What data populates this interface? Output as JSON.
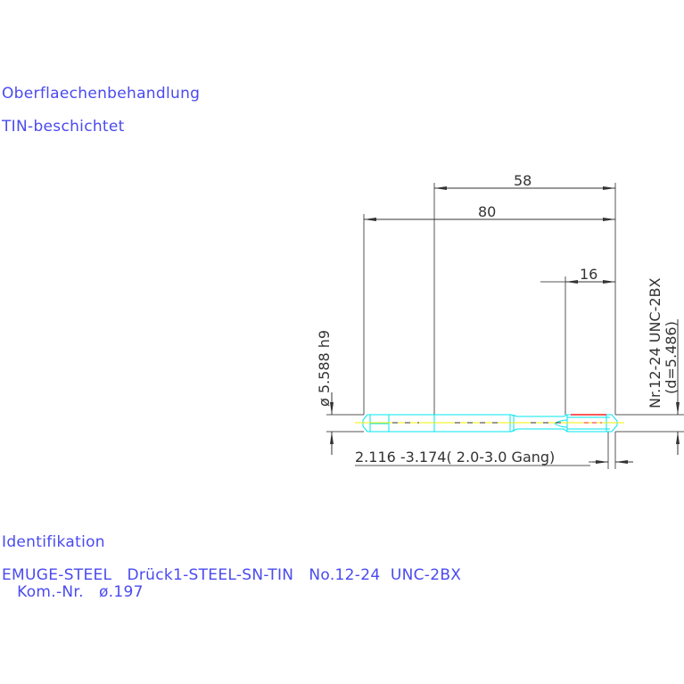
{
  "notes": {
    "surface_heading": "Oberflaechenbehandlung",
    "surface_value": "TIN-beschichtet",
    "ident_heading": "Identifikation",
    "ident_line1": "EMUGE-STEEL   Drück1-STEEL-SN-TIN   No.12-24  UNC-2BX",
    "ident_line2": "   Kom.-Nr.   ø.197"
  },
  "dimensions": {
    "length_58": "58",
    "length_80": "80",
    "length_16": "16",
    "diameter": "ø 5.588  h9",
    "thread_spec": "Nr.12-24  UNC-2BX",
    "thread_d": "(d=5.486)",
    "chamfer": "2.116 -3.174( 2.0-3.0  Gang)"
  },
  "colors": {
    "text": "#4a4af0",
    "tool_outline": "#00e5ee",
    "centerline": "#f0f000",
    "thread": "#ff2020",
    "dim_lines": "#333333"
  }
}
